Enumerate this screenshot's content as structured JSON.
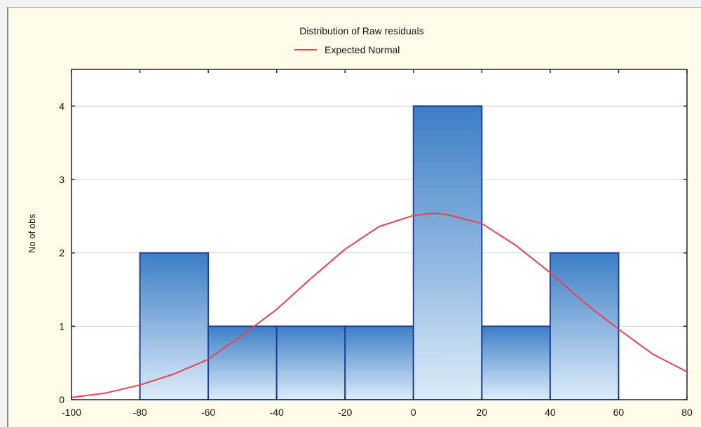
{
  "chart_data": {
    "type": "bar",
    "title": "Distribution of Raw residuals",
    "xlabel": "",
    "ylabel": "No of obs",
    "xlim": [
      -100,
      80
    ],
    "ylim": [
      0,
      4.5
    ],
    "x_ticks": [
      -100,
      -80,
      -60,
      -40,
      -20,
      0,
      20,
      40,
      60,
      80
    ],
    "y_ticks": [
      0,
      1,
      2,
      3,
      4
    ],
    "grid": true,
    "legend": {
      "position": "top",
      "entries": [
        "Expected Normal"
      ]
    },
    "bins": [
      {
        "from": -80,
        "to": -60,
        "count": 2
      },
      {
        "from": -60,
        "to": -40,
        "count": 1
      },
      {
        "from": -40,
        "to": -20,
        "count": 1
      },
      {
        "from": -20,
        "to": 0,
        "count": 1
      },
      {
        "from": 0,
        "to": 20,
        "count": 4
      },
      {
        "from": 20,
        "to": 40,
        "count": 1
      },
      {
        "from": 40,
        "to": 60,
        "count": 2
      }
    ],
    "series": [
      {
        "name": "Expected Normal",
        "type": "line",
        "x": [
          -100,
          -90,
          -80,
          -70,
          -60,
          -50,
          -40,
          -30,
          -20,
          -10,
          0,
          6,
          10,
          20,
          30,
          40,
          50,
          60,
          70,
          80
        ],
        "y": [
          0.03,
          0.09,
          0.2,
          0.35,
          0.55,
          0.88,
          1.23,
          1.65,
          2.05,
          2.36,
          2.51,
          2.54,
          2.52,
          2.4,
          2.1,
          1.73,
          1.32,
          0.96,
          0.62,
          0.38
        ]
      }
    ],
    "colors": {
      "bar_fill_top": "#3c7ec6",
      "bar_fill_bottom": "#ddecf9",
      "bar_stroke": "#1f3f9a",
      "line": "#e8424e",
      "plot_background": "#ffffff",
      "frame_background": "#fffde9"
    }
  }
}
